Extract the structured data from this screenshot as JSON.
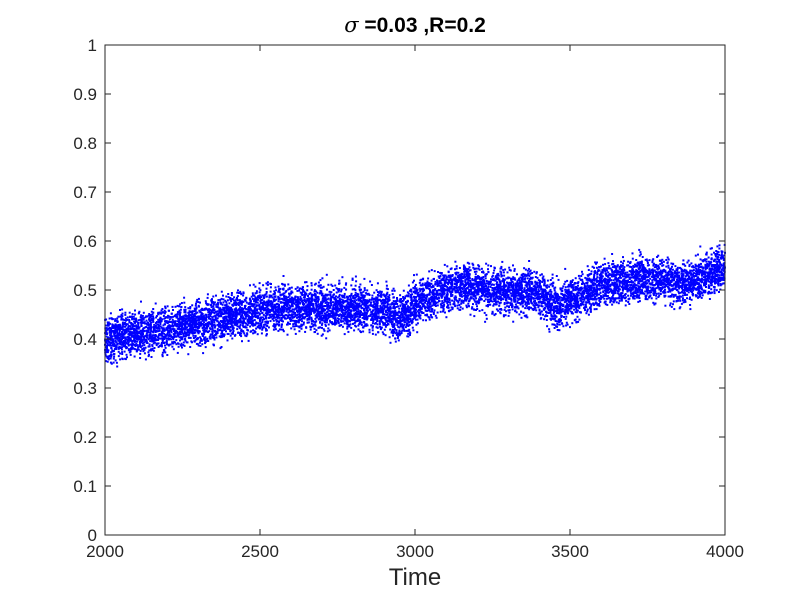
{
  "chart_data": {
    "type": "scatter",
    "title_symbol": "σ",
    "title_rest": " =0.03 ,R=0.2",
    "xlabel": "Time",
    "ylabel": "",
    "xlim": [
      2000,
      4000
    ],
    "ylim": [
      0,
      1
    ],
    "xticks": [
      2000,
      2500,
      3000,
      3500,
      4000
    ],
    "xtick_labels": [
      "2000",
      "2500",
      "3000",
      "3500",
      "4000"
    ],
    "yticks": [
      0,
      0.1,
      0.2,
      0.3,
      0.4,
      0.5,
      0.6,
      0.7,
      0.8,
      0.9,
      1
    ],
    "ytick_labels": [
      "0",
      "0.1",
      "0.2",
      "0.3",
      "0.4",
      "0.5",
      "0.6",
      "0.7",
      "0.8",
      "0.9",
      "1"
    ],
    "grid": false,
    "legend": "none",
    "marker_color": "#0000ff",
    "series": [
      {
        "x_range": [
          2000,
          4000
        ],
        "trend": {
          "x": [
            2000,
            2100,
            2200,
            2300,
            2400,
            2500,
            2600,
            2700,
            2800,
            2900,
            2950,
            3000,
            3100,
            3150,
            3200,
            3300,
            3350,
            3400,
            3450,
            3500,
            3600,
            3700,
            3800,
            3850,
            3900,
            4000
          ],
          "y": [
            0.4,
            0.41,
            0.42,
            0.43,
            0.445,
            0.46,
            0.465,
            0.465,
            0.465,
            0.46,
            0.44,
            0.47,
            0.5,
            0.51,
            0.505,
            0.495,
            0.5,
            0.49,
            0.465,
            0.48,
            0.51,
            0.52,
            0.525,
            0.51,
            0.52,
            0.545
          ]
        },
        "spread": 0.03,
        "min_observed": 0.33,
        "max_observed": 0.62
      }
    ]
  }
}
